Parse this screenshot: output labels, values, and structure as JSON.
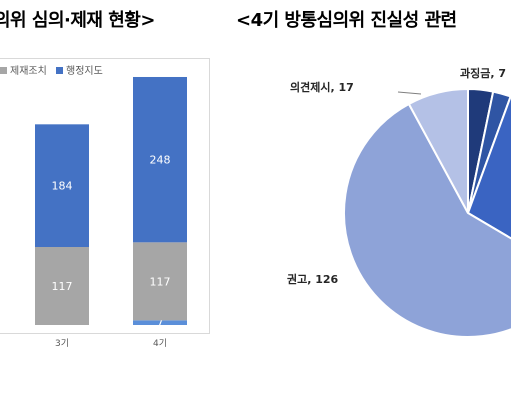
{
  "left_title": "의위 심의·제재 현황>",
  "right_title": "<4기 방통심의위 진실성 관련",
  "chart_data": [
    {
      "type": "bar",
      "stacked": true,
      "legend_position": "top-left",
      "categories": [
        "3기",
        "4기"
      ],
      "series": [
        {
          "name": "",
          "values": [
            0,
            7
          ],
          "color": "#5b8fd9"
        },
        {
          "name": "제재조치",
          "values": [
            117,
            117
          ],
          "color": "#a6a6a6"
        },
        {
          "name": "행정지도",
          "values": [
            184,
            248
          ],
          "color": "#4472c4"
        }
      ],
      "legend": [
        "제재조치",
        "행정지도"
      ],
      "ylim": [
        0,
        390
      ],
      "grid": false
    },
    {
      "type": "pie",
      "slices": [
        {
          "label": "과징금",
          "value": 7,
          "display": "과징금, 7",
          "color": "#1f3a7a"
        },
        {
          "label": "",
          "value": 5,
          "display": "",
          "color": "#2f55a4"
        },
        {
          "label": "",
          "value": 60,
          "display": "",
          "color": "#3a64c2"
        },
        {
          "label": "권고",
          "value": 126,
          "display": "권고, 126",
          "color": "#8ea3d8"
        },
        {
          "label": "의견제시",
          "value": 17,
          "display": "의견제시, 17",
          "color": "#b4c1e6"
        }
      ]
    }
  ]
}
